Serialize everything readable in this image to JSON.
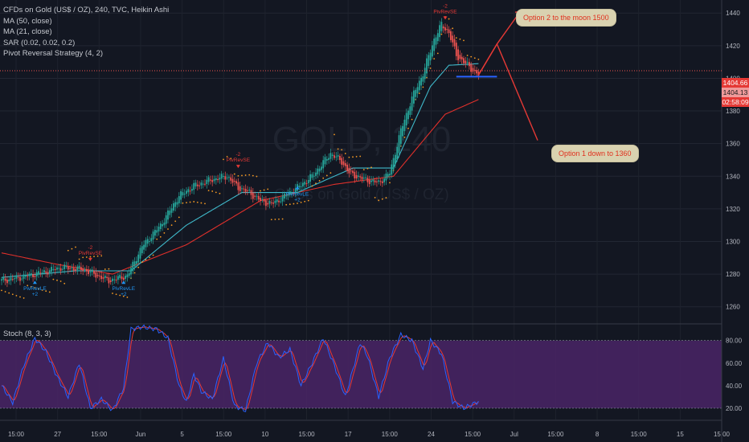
{
  "legend": {
    "title": "CFDs on Gold (US$ / OZ), 240, TVC, Heikin Ashi",
    "studies": [
      "MA (50, close)",
      "MA (21, close)",
      "SAR (0.02, 0.02, 0.2)",
      "Pivot Reversal Strategy (4, 2)"
    ]
  },
  "watermark": {
    "symbol": "GOLD, 240",
    "name": "CFDs on Gold (US$ / OZ)"
  },
  "stoch_label": "Stoch (8, 3, 3)",
  "price_badges": {
    "last": "1404.66",
    "ma": "1404.13",
    "countdown": "02:58:09"
  },
  "callouts": {
    "up": "Option 2 to the moon 1500",
    "down": "Option 1 down to 1360"
  },
  "pivot_labels": [
    {
      "text": "PivRevLE",
      "sub": "+2",
      "color": "#2196f3"
    },
    {
      "text": "PivRevSE",
      "sub": "-2",
      "color": "#e53935"
    },
    {
      "text": "PivRevLE",
      "sub": "+2",
      "color": "#2196f3"
    },
    {
      "text": "PivRevSE",
      "sub": "-2",
      "color": "#e53935"
    },
    {
      "text": "PivRevLE",
      "sub": "+2",
      "color": "#2196f3"
    },
    {
      "text": "PivRevSE",
      "sub": "-2",
      "color": "#e53935"
    }
  ],
  "colors": {
    "up": "#26a69a",
    "down": "#ef5350",
    "ma50": "#e0302b",
    "ma21": "#3fb8c9",
    "sar": "#f59a23",
    "stoch_k": "#2962ff",
    "stoch_d": "#e53935",
    "stoch_band": "#4a2466"
  },
  "chart_data": [
    {
      "type": "candlestick",
      "title": "CFDs on Gold (US$ / OZ), 240, TVC, Heikin Ashi",
      "y_ticks": [
        1260,
        1280,
        1300,
        1320,
        1340,
        1360,
        1380,
        1400,
        1420,
        1440
      ],
      "ylim": [
        1250,
        1448
      ],
      "x_ticks": [
        "15:00",
        "27",
        "15:00",
        "Jun",
        "5",
        "15:00",
        "10",
        "15:00",
        "17",
        "15:00",
        "24",
        "15:00",
        "Jul",
        "15:00",
        "8",
        "15:00",
        "15",
        "15:00"
      ],
      "last_price": 1404.66,
      "ma_price": 1404.13,
      "anchors_close": [
        [
          0,
          1276
        ],
        [
          10,
          1278
        ],
        [
          22,
          1281
        ],
        [
          32,
          1284
        ],
        [
          44,
          1283
        ],
        [
          52,
          1279
        ],
        [
          58,
          1276
        ],
        [
          68,
          1279
        ],
        [
          76,
          1297
        ],
        [
          86,
          1310
        ],
        [
          96,
          1328
        ],
        [
          104,
          1334
        ],
        [
          114,
          1338
        ],
        [
          122,
          1340
        ],
        [
          128,
          1333
        ],
        [
          134,
          1330
        ],
        [
          140,
          1325
        ],
        [
          146,
          1323
        ],
        [
          152,
          1327
        ],
        [
          160,
          1333
        ],
        [
          168,
          1340
        ],
        [
          178,
          1354
        ],
        [
          184,
          1349
        ],
        [
          188,
          1342
        ],
        [
          196,
          1338
        ],
        [
          204,
          1336
        ],
        [
          210,
          1342
        ],
        [
          216,
          1368
        ],
        [
          222,
          1388
        ],
        [
          228,
          1403
        ],
        [
          234,
          1424
        ],
        [
          238,
          1433
        ],
        [
          242,
          1428
        ],
        [
          246,
          1414
        ],
        [
          252,
          1408
        ],
        [
          258,
          1402
        ]
      ],
      "ma21": [
        [
          0,
          1278
        ],
        [
          40,
          1282
        ],
        [
          70,
          1282
        ],
        [
          100,
          1310
        ],
        [
          130,
          1330
        ],
        [
          160,
          1330
        ],
        [
          190,
          1345
        ],
        [
          212,
          1345
        ],
        [
          232,
          1395
        ],
        [
          242,
          1408
        ],
        [
          258,
          1409
        ]
      ],
      "ma50": [
        [
          0,
          1293
        ],
        [
          30,
          1286
        ],
        [
          60,
          1280
        ],
        [
          100,
          1298
        ],
        [
          140,
          1325
        ],
        [
          180,
          1335
        ],
        [
          212,
          1340
        ],
        [
          240,
          1378
        ],
        [
          258,
          1387
        ]
      ],
      "projection": {
        "up": [
          [
            258,
            1402
          ],
          [
            268,
            1421
          ],
          [
            280,
            1440
          ]
        ],
        "down": [
          [
            258,
            1402
          ],
          [
            268,
            1421
          ],
          [
            290,
            1362
          ]
        ]
      }
    },
    {
      "type": "line",
      "title": "Stoch (8, 3, 3)",
      "y_ticks": [
        20.0,
        40.0,
        60.0,
        80.0
      ],
      "ylim": [
        10,
        94
      ],
      "band": [
        20,
        80
      ],
      "k_anchors": [
        [
          0,
          40
        ],
        [
          6,
          25
        ],
        [
          12,
          58
        ],
        [
          18,
          82
        ],
        [
          24,
          70
        ],
        [
          30,
          48
        ],
        [
          36,
          30
        ],
        [
          42,
          60
        ],
        [
          48,
          20
        ],
        [
          54,
          28
        ],
        [
          60,
          18
        ],
        [
          66,
          38
        ],
        [
          70,
          90
        ],
        [
          76,
          92
        ],
        [
          84,
          90
        ],
        [
          90,
          82
        ],
        [
          96,
          40
        ],
        [
          100,
          25
        ],
        [
          104,
          50
        ],
        [
          108,
          35
        ],
        [
          114,
          28
        ],
        [
          120,
          64
        ],
        [
          126,
          22
        ],
        [
          132,
          18
        ],
        [
          138,
          60
        ],
        [
          144,
          78
        ],
        [
          150,
          65
        ],
        [
          156,
          72
        ],
        [
          162,
          40
        ],
        [
          168,
          60
        ],
        [
          174,
          82
        ],
        [
          180,
          58
        ],
        [
          186,
          30
        ],
        [
          194,
          78
        ],
        [
          198,
          66
        ],
        [
          204,
          30
        ],
        [
          210,
          65
        ],
        [
          216,
          85
        ],
        [
          222,
          80
        ],
        [
          228,
          55
        ],
        [
          232,
          80
        ],
        [
          238,
          68
        ],
        [
          244,
          26
        ],
        [
          250,
          20
        ],
        [
          258,
          26
        ]
      ]
    }
  ]
}
